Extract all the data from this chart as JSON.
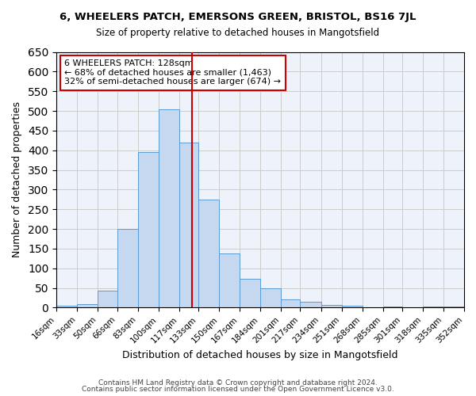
{
  "title_line1": "6, WHEELERS PATCH, EMERSONS GREEN, BRISTOL, BS16 7JL",
  "title_line2": "Size of property relative to detached houses in Mangotsfield",
  "xlabel": "Distribution of detached houses by size in Mangotsfield",
  "ylabel": "Number of detached properties",
  "bin_labels": [
    "16sqm",
    "33sqm",
    "50sqm",
    "66sqm",
    "83sqm",
    "100sqm",
    "117sqm",
    "133sqm",
    "150sqm",
    "167sqm",
    "184sqm",
    "201sqm",
    "217sqm",
    "234sqm",
    "251sqm",
    "268sqm",
    "285sqm",
    "301sqm",
    "318sqm",
    "335sqm",
    "352sqm"
  ],
  "bar_values": [
    5,
    10,
    43,
    200,
    395,
    505,
    420,
    275,
    138,
    73,
    50,
    22,
    15,
    8,
    5,
    0,
    3,
    0,
    3,
    2
  ],
  "bin_edges": [
    16,
    33,
    50,
    66,
    83,
    100,
    117,
    133,
    150,
    167,
    184,
    201,
    217,
    234,
    251,
    268,
    285,
    301,
    318,
    335,
    352
  ],
  "bar_color": "#c5d8f0",
  "bar_edge_color": "#5b9bd5",
  "vline_x": 128,
  "vline_color": "#cc0000",
  "ylim": [
    0,
    650
  ],
  "yticks": [
    0,
    50,
    100,
    150,
    200,
    250,
    300,
    350,
    400,
    450,
    500,
    550,
    600,
    650
  ],
  "grid_color": "#cccccc",
  "bg_color": "#eef3fb",
  "annotation_title": "6 WHEELERS PATCH: 128sqm",
  "annotation_line1": "← 68% of detached houses are smaller (1,463)",
  "annotation_line2": "32% of semi-detached houses are larger (674) →",
  "annotation_box_color": "#ffffff",
  "annotation_box_edge": "#cc0000",
  "footer_line1": "Contains HM Land Registry data © Crown copyright and database right 2024.",
  "footer_line2": "Contains public sector information licensed under the Open Government Licence v3.0."
}
